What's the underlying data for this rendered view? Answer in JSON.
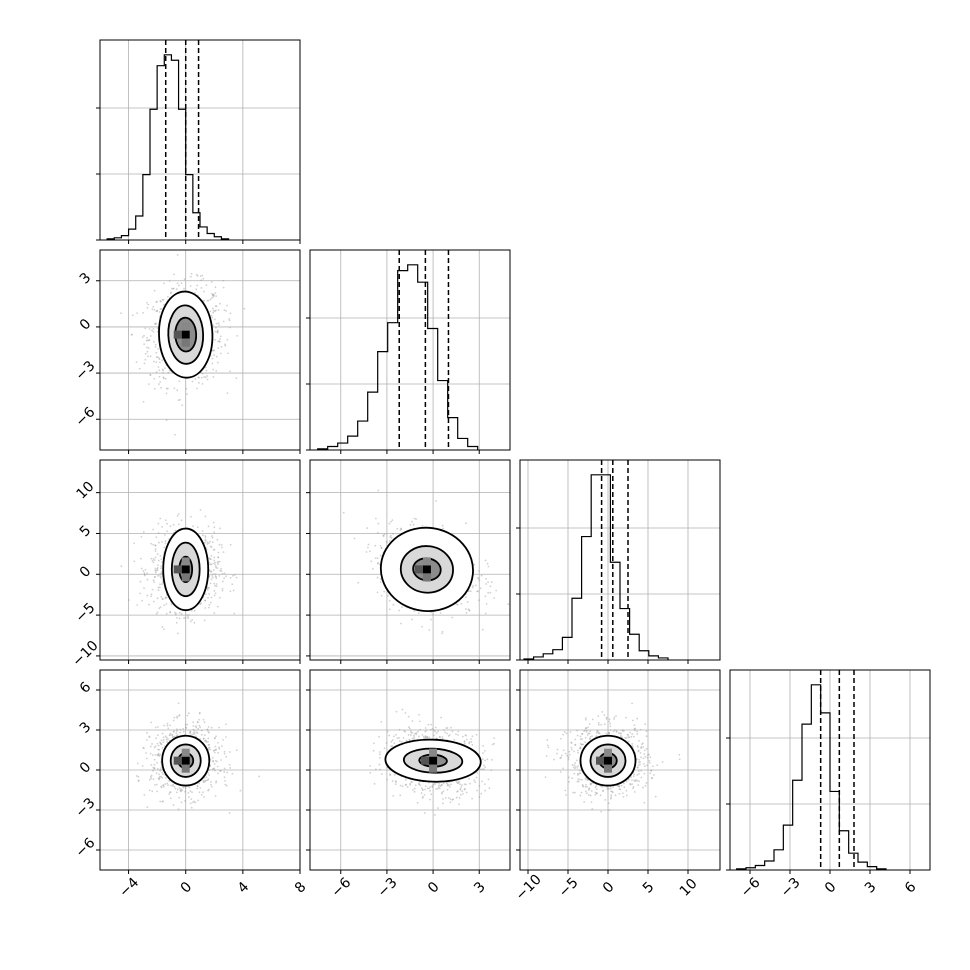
{
  "chart_data": {
    "type": "corner",
    "parameters": 4,
    "axis_labels": [],
    "grid": true,
    "quantile_lines": "dashed",
    "x_ranges": [
      [
        -6,
        8
      ],
      [
        -8,
        5
      ],
      [
        -11,
        14
      ],
      [
        -7.5,
        7.5
      ]
    ],
    "y_ranges": [
      [
        null,
        null
      ],
      [
        -8,
        5
      ],
      [
        -10.5,
        14
      ],
      [
        -7.5,
        7.5
      ]
    ],
    "x_ticks": [
      [
        -4,
        0,
        4,
        8
      ],
      [
        -6,
        -3,
        0,
        3
      ],
      [
        -10,
        -5,
        0,
        5,
        10
      ],
      [
        -6,
        -3,
        0,
        3,
        6
      ]
    ],
    "x_tick_labels": [
      [
        "−4",
        "0",
        "4",
        "8"
      ],
      [
        "−6",
        "−3",
        "0",
        "3"
      ],
      [
        "−10",
        "−5",
        "0",
        "5",
        "10"
      ],
      [
        "−6",
        "−3",
        "0",
        "3",
        "6"
      ]
    ],
    "y_ticks": [
      [],
      [
        3,
        0,
        -3,
        -6
      ],
      [
        10,
        5,
        0,
        -5,
        -10
      ],
      [
        6,
        3,
        0,
        -3,
        -6
      ]
    ],
    "y_tick_labels": [
      [],
      [
        "3",
        "0",
        "−3",
        "−6"
      ],
      [
        "10",
        "5",
        "0",
        "−5",
        "−10"
      ],
      [
        "6",
        "3",
        "0",
        "−3",
        "−6"
      ]
    ],
    "quantiles": [
      [
        -1.4,
        0,
        0.9
      ],
      [
        -2.2,
        -0.5,
        1.0
      ],
      [
        -0.8,
        0.6,
        2.5
      ],
      [
        -0.7,
        0.7,
        1.8
      ]
    ],
    "histograms": [
      {
        "bin_start": -5.5,
        "bin_width": 0.5,
        "counts": [
          1,
          2,
          4,
          10,
          22,
          60,
          120,
          160,
          170,
          165,
          120,
          60,
          25,
          12,
          6,
          3,
          1
        ]
      },
      {
        "bin_start": -7.5,
        "bin_width": 0.65,
        "counts": [
          1,
          3,
          6,
          12,
          25,
          50,
          85,
          110,
          155,
          160,
          145,
          105,
          60,
          28,
          10,
          3
        ]
      },
      {
        "bin_start": -10.5,
        "bin_width": 1.2,
        "counts": [
          1,
          3,
          6,
          10,
          22,
          60,
          120,
          180,
          180,
          95,
          50,
          25,
          9,
          4,
          2
        ]
      },
      {
        "bin_start": -7,
        "bin_width": 0.7,
        "counts": [
          1,
          2,
          4,
          8,
          18,
          40,
          80,
          130,
          165,
          140,
          70,
          35,
          15,
          7,
          3,
          1
        ]
      }
    ],
    "pairs": [
      {
        "row": 1,
        "col": 0,
        "center": [
          0,
          -0.5
        ],
        "spread": [
          1.3,
          1.6
        ],
        "tilt": 0.1,
        "rings": [
          [
            0.45,
            0.55
          ],
          [
            0.75,
            0.95
          ],
          [
            1.15,
            1.4
          ]
        ]
      },
      {
        "row": 2,
        "col": 0,
        "center": [
          0,
          0.6
        ],
        "spread": [
          1.2,
          2.5
        ],
        "tilt": 0,
        "rings": [
          [
            0.3,
            0.5
          ],
          [
            0.65,
            1.05
          ],
          [
            1.05,
            1.6
          ]
        ]
      },
      {
        "row": 2,
        "col": 1,
        "center": [
          -0.4,
          0.6
        ],
        "spread": [
          1.6,
          2.4
        ],
        "tilt": -0.35,
        "rings": [
          [
            0.45,
            0.45
          ],
          [
            0.85,
            0.95
          ],
          [
            1.5,
            1.7
          ]
        ]
      },
      {
        "row": 3,
        "col": 0,
        "center": [
          0,
          0.7
        ],
        "spread": [
          1.2,
          1.3
        ],
        "tilt": 0,
        "rings": [
          [
            0.35,
            0.35
          ],
          [
            0.7,
            0.75
          ],
          [
            1.1,
            1.15
          ]
        ]
      },
      {
        "row": 3,
        "col": 1,
        "center": [
          0,
          0.7
        ],
        "spread": [
          1.6,
          1.2
        ],
        "tilt": -0.1,
        "rings": [
          [
            0.45,
            0.3
          ],
          [
            0.95,
            0.6
          ],
          [
            1.55,
            1.05
          ]
        ]
      },
      {
        "row": 3,
        "col": 2,
        "center": [
          0,
          0.7
        ],
        "spread": [
          2.5,
          1.3
        ],
        "tilt": 0,
        "rings": [
          [
            0.35,
            0.35
          ],
          [
            0.7,
            0.75
          ],
          [
            1.1,
            1.15
          ]
        ]
      }
    ]
  }
}
